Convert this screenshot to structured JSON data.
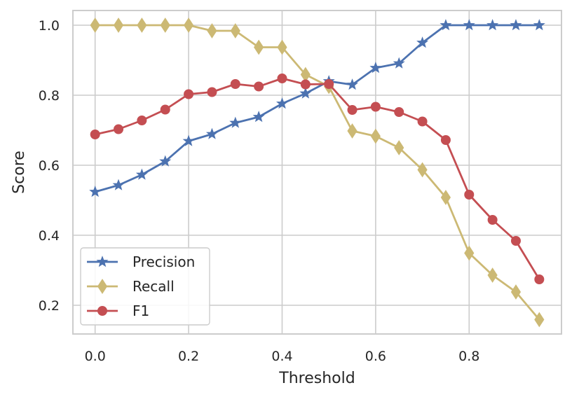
{
  "chart_data": {
    "type": "line",
    "title": "",
    "xlabel": "Threshold",
    "ylabel": "Score",
    "x": [
      0.0,
      0.05,
      0.1,
      0.15,
      0.2,
      0.25,
      0.3,
      0.35,
      0.4,
      0.45,
      0.5,
      0.55,
      0.6,
      0.65,
      0.7,
      0.75,
      0.8,
      0.85,
      0.9,
      0.95
    ],
    "xlim": [
      -0.0475,
      0.9975
    ],
    "ylim": [
      0.118,
      1.042
    ],
    "xticks": [
      0.0,
      0.2,
      0.4,
      0.6,
      0.8
    ],
    "xtick_labels": [
      "0.0",
      "0.2",
      "0.4",
      "0.6",
      "0.8"
    ],
    "yticks": [
      0.2,
      0.4,
      0.6,
      0.8,
      1.0
    ],
    "ytick_labels": [
      "0.2",
      "0.4",
      "0.6",
      "0.8",
      "1.0"
    ],
    "grid": true,
    "legend_position": "lower-left",
    "series": [
      {
        "name": "Precision",
        "color": "#4c72b0",
        "marker": "star",
        "values": [
          0.524,
          0.543,
          0.573,
          0.611,
          0.669,
          0.689,
          0.721,
          0.738,
          0.776,
          0.805,
          0.84,
          0.83,
          0.878,
          0.891,
          0.95,
          1.0,
          1.0,
          1.0,
          1.0,
          1.0
        ]
      },
      {
        "name": "Recall",
        "color": "#ccb974",
        "marker": "thin-diamond",
        "values": [
          1.0,
          1.0,
          1.0,
          1.0,
          1.0,
          0.984,
          0.984,
          0.937,
          0.937,
          0.859,
          0.825,
          0.698,
          0.683,
          0.65,
          0.587,
          0.508,
          0.349,
          0.286,
          0.238,
          0.159
        ]
      },
      {
        "name": "F1",
        "color": "#c44e52",
        "marker": "circle",
        "values": [
          0.688,
          0.703,
          0.728,
          0.759,
          0.803,
          0.809,
          0.832,
          0.825,
          0.848,
          0.831,
          0.832,
          0.758,
          0.767,
          0.752,
          0.725,
          0.672,
          0.516,
          0.444,
          0.384,
          0.274
        ]
      }
    ]
  }
}
